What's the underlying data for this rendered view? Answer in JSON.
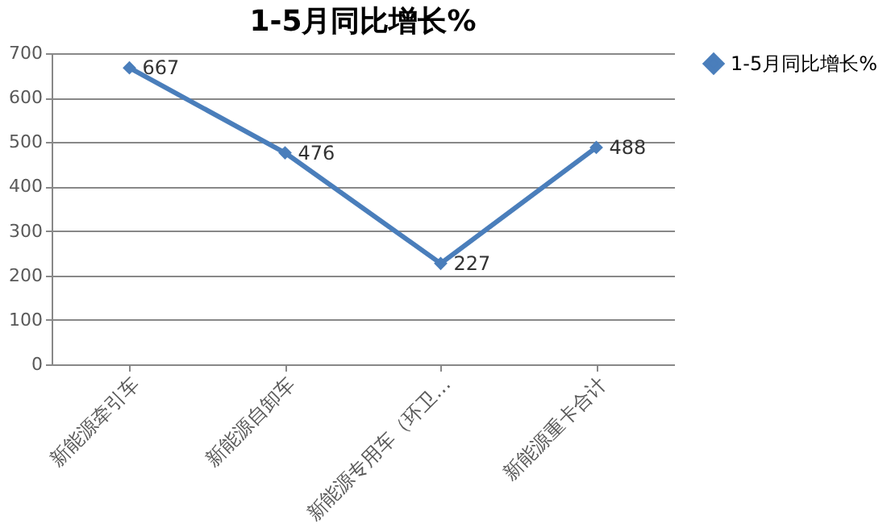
{
  "chart_data": {
    "type": "line",
    "title": "1-5月同比增长%",
    "categories": [
      "新能源牵引车",
      "新能源自卸车",
      "新能源专用车（环卫…",
      "新能源重卡合计"
    ],
    "series": [
      {
        "name": "1-5月同比增长%",
        "color": "#4a7ebb",
        "values": [
          667,
          476,
          227,
          488
        ]
      }
    ],
    "ylim": [
      0,
      700
    ],
    "yticks": [
      0,
      100,
      200,
      300,
      400,
      500,
      600,
      700
    ],
    "grid": "y",
    "legend": "right",
    "marker": "diamond",
    "line_style": "solid",
    "data_labels": true
  }
}
